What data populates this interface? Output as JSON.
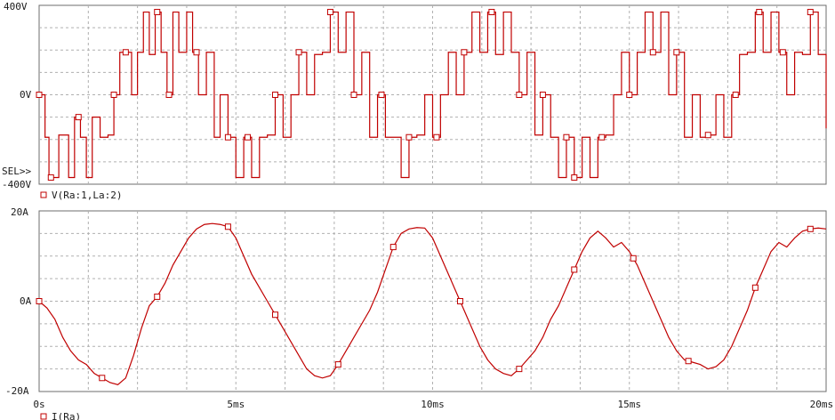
{
  "chart_data": [
    {
      "type": "line",
      "name": "voltage-panel",
      "ytick_labels": [
        "400V",
        "0V",
        "-400V"
      ],
      "yticks": [
        400,
        0,
        -400
      ],
      "ylim": [
        -400,
        400
      ],
      "xlim": [
        0,
        20
      ],
      "x_unit": "ms",
      "sel_label": "SEL>>",
      "legend": "V(Ra:1,La:2)",
      "marker_x": [
        0.0,
        0.3,
        1.0,
        1.9,
        2.2,
        3.0,
        3.3,
        4.0,
        4.8,
        5.3,
        6.0,
        6.6,
        7.4,
        8.0,
        8.7,
        9.4,
        10.1,
        10.8,
        11.5,
        12.2,
        12.8,
        13.4,
        13.6,
        14.3,
        15.0,
        15.6,
        16.2,
        17.0,
        17.7,
        18.3,
        18.9,
        19.6
      ],
      "series": [
        {
          "name": "V(Ra:1,La:2)",
          "x": [
            0.0,
            0.15,
            0.25,
            0.5,
            0.75,
            0.9,
            1.05,
            1.2,
            1.35,
            1.55,
            1.75,
            1.9,
            2.05,
            2.2,
            2.35,
            2.5,
            2.65,
            2.8,
            2.95,
            3.1,
            3.25,
            3.4,
            3.55,
            3.75,
            3.9,
            4.05,
            4.25,
            4.45,
            4.6,
            4.8,
            5.0,
            5.2,
            5.4,
            5.6,
            5.8,
            6.0,
            6.2,
            6.4,
            6.6,
            6.8,
            7.0,
            7.2,
            7.4,
            7.6,
            7.8,
            8.0,
            8.2,
            8.4,
            8.6,
            8.8,
            9.0,
            9.2,
            9.4,
            9.6,
            9.8,
            10.0,
            10.2,
            10.4,
            10.6,
            10.8,
            11.0,
            11.2,
            11.4,
            11.6,
            11.8,
            12.0,
            12.2,
            12.4,
            12.6,
            12.8,
            13.0,
            13.2,
            13.4,
            13.6,
            13.8,
            14.0,
            14.2,
            14.4,
            14.6,
            14.8,
            15.0,
            15.2,
            15.4,
            15.6,
            15.8,
            16.0,
            16.2,
            16.4,
            16.6,
            16.8,
            17.0,
            17.2,
            17.4,
            17.6,
            17.8,
            18.0,
            18.2,
            18.4,
            18.6,
            18.8,
            19.0,
            19.2,
            19.4,
            19.6,
            19.8,
            20.0
          ],
          "values": [
            0,
            -190,
            -370,
            -180,
            -370,
            -100,
            -190,
            -370,
            -100,
            -190,
            -180,
            0,
            190,
            190,
            0,
            190,
            370,
            180,
            370,
            190,
            0,
            370,
            190,
            370,
            190,
            0,
            190,
            -190,
            0,
            -190,
            -370,
            -190,
            -370,
            -190,
            -180,
            0,
            -190,
            0,
            190,
            0,
            180,
            190,
            370,
            190,
            370,
            0,
            190,
            -190,
            0,
            -190,
            -190,
            -370,
            -190,
            -180,
            0,
            -190,
            0,
            190,
            0,
            190,
            370,
            190,
            370,
            180,
            370,
            190,
            0,
            190,
            -180,
            0,
            -190,
            -370,
            -190,
            -370,
            -190,
            -370,
            -190,
            -180,
            0,
            190,
            0,
            190,
            370,
            190,
            370,
            0,
            190,
            -190,
            0,
            -190,
            -180,
            0,
            -190,
            0,
            180,
            190,
            370,
            190,
            370,
            190,
            0,
            190,
            180,
            370,
            180,
            -150
          ]
        }
      ]
    },
    {
      "type": "line",
      "name": "current-panel",
      "ytick_labels": [
        "20A",
        "0A",
        "-20A"
      ],
      "yticks": [
        20,
        0,
        -20
      ],
      "ylim": [
        -20,
        20
      ],
      "xlim": [
        0,
        20
      ],
      "xticks": [
        0,
        5,
        10,
        15,
        20
      ],
      "xtick_labels": [
        "0s",
        "5ms",
        "10ms",
        "15ms",
        "20ms"
      ],
      "legend": "I(Ra)",
      "marker_x": [
        0.0,
        1.6,
        3.0,
        4.8,
        6.0,
        7.6,
        9.0,
        10.7,
        12.2,
        13.6,
        15.1,
        16.5,
        18.2,
        19.6
      ],
      "series": [
        {
          "name": "I(Ra)",
          "x": [
            0.0,
            0.2,
            0.4,
            0.6,
            0.8,
            1.0,
            1.2,
            1.4,
            1.6,
            1.8,
            2.0,
            2.2,
            2.4,
            2.6,
            2.8,
            3.0,
            3.2,
            3.4,
            3.6,
            3.8,
            4.0,
            4.2,
            4.4,
            4.6,
            4.8,
            5.0,
            5.2,
            5.4,
            5.6,
            5.8,
            6.0,
            6.2,
            6.4,
            6.6,
            6.8,
            7.0,
            7.2,
            7.4,
            7.6,
            7.8,
            8.0,
            8.2,
            8.4,
            8.6,
            8.8,
            9.0,
            9.2,
            9.4,
            9.6,
            9.8,
            10.0,
            10.2,
            10.4,
            10.6,
            10.8,
            11.0,
            11.2,
            11.4,
            11.6,
            11.8,
            12.0,
            12.2,
            12.4,
            12.6,
            12.8,
            13.0,
            13.2,
            13.4,
            13.6,
            13.8,
            14.0,
            14.2,
            14.4,
            14.6,
            14.8,
            15.0,
            15.2,
            15.4,
            15.6,
            15.8,
            16.0,
            16.2,
            16.4,
            16.6,
            16.8,
            17.0,
            17.2,
            17.4,
            17.6,
            17.8,
            18.0,
            18.2,
            18.4,
            18.6,
            18.8,
            19.0,
            19.2,
            19.4,
            19.6,
            19.8,
            20.0
          ],
          "values": [
            0,
            -1.5,
            -4,
            -8,
            -11,
            -13,
            -14,
            -16,
            -17,
            -18,
            -18.5,
            -17,
            -12,
            -6,
            -1,
            1,
            4,
            8,
            11,
            14,
            16,
            17,
            17.2,
            17,
            16.5,
            14,
            10,
            6,
            3,
            0,
            -3,
            -6,
            -9,
            -12,
            -15,
            -16.5,
            -17,
            -16.5,
            -14,
            -11,
            -8,
            -5,
            -2,
            2,
            7,
            12,
            15,
            16,
            16.3,
            16.2,
            14,
            10,
            6,
            2,
            -2,
            -6,
            -10,
            -13,
            -15,
            -16,
            -16.5,
            -15,
            -13,
            -11,
            -8,
            -4,
            -1,
            3,
            7,
            11,
            14,
            15.5,
            14,
            12,
            13,
            11,
            8,
            4,
            0,
            -4,
            -8,
            -11,
            -13,
            -13.5,
            -14,
            -15,
            -14.5,
            -13,
            -10,
            -6,
            -2,
            3,
            7,
            11,
            13,
            12,
            14,
            15.5,
            16,
            16.2,
            16
          ]
        }
      ]
    }
  ]
}
